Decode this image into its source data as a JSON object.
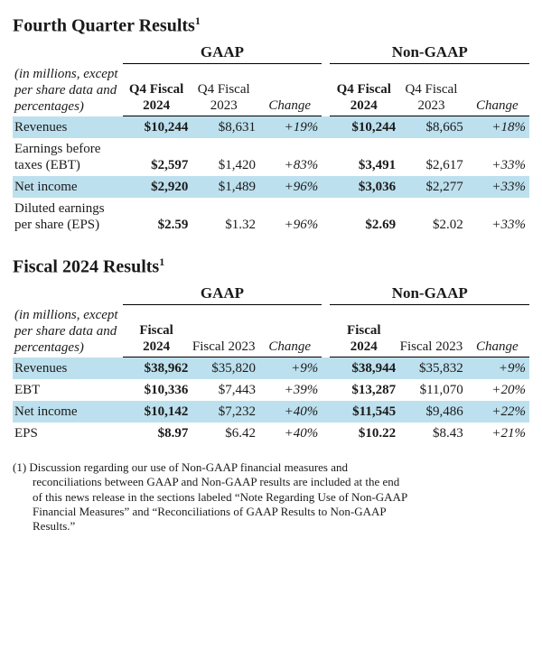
{
  "table1": {
    "title": "Fourth Quarter Results",
    "sup": "1",
    "note": "(in millions, except per share data and percentages)",
    "group_gaap": "GAAP",
    "group_nongaap": "Non-GAAP",
    "h_cur_a": "Q4 Fiscal 2024",
    "h_prev_a": "Q4 Fiscal 2023",
    "h_chg": "Change",
    "h_cur_b": "Q4 Fiscal 2024",
    "h_prev_b": "Q4 Fiscal 2023",
    "rows": [
      {
        "label": "Revenues",
        "hl": true,
        "ga": "$10,244",
        "gb": "$8,631",
        "gc": "+19%",
        "na": "$10,244",
        "nb": "$8,665",
        "nc": "+18%"
      },
      {
        "label": "Earnings before taxes (EBT)",
        "hl": false,
        "ga": "$2,597",
        "gb": "$1,420",
        "gc": "+83%",
        "na": "$3,491",
        "nb": "$2,617",
        "nc": "+33%"
      },
      {
        "label": "Net income",
        "hl": true,
        "ga": "$2,920",
        "gb": "$1,489",
        "gc": "+96%",
        "na": "$3,036",
        "nb": "$2,277",
        "nc": "+33%"
      },
      {
        "label": "Diluted earnings per share (EPS)",
        "hl": false,
        "ga": "$2.59",
        "gb": "$1.32",
        "gc": "+96%",
        "na": "$2.69",
        "nb": "$2.02",
        "nc": "+33%"
      }
    ]
  },
  "table2": {
    "title": "Fiscal 2024 Results",
    "sup": "1",
    "note": "(in millions, except per share data and percentages)",
    "group_gaap": "GAAP",
    "group_nongaap": "Non-GAAP",
    "h_cur_a": "Fiscal 2024",
    "h_prev_a": "Fiscal 2023",
    "h_chg": "Change",
    "h_cur_b": "Fiscal 2024",
    "h_prev_b": "Fiscal 2023",
    "rows": [
      {
        "label": "Revenues",
        "hl": true,
        "ga": "$38,962",
        "gb": "$35,820",
        "gc": "+9%",
        "na": "$38,944",
        "nb": "$35,832",
        "nc": "+9%"
      },
      {
        "label": "EBT",
        "hl": false,
        "ga": "$10,336",
        "gb": "$7,443",
        "gc": "+39%",
        "na": "$13,287",
        "nb": "$11,070",
        "nc": "+20%"
      },
      {
        "label": "Net income",
        "hl": true,
        "ga": "$10,142",
        "gb": "$7,232",
        "gc": "+40%",
        "na": "$11,545",
        "nb": "$9,486",
        "nc": "+22%"
      },
      {
        "label": "EPS",
        "hl": false,
        "ga": "$8.97",
        "gb": "$6.42",
        "gc": "+40%",
        "na": "$10.22",
        "nb": "$8.43",
        "nc": "+21%"
      }
    ]
  },
  "footnote": "(1) Discussion regarding our use of Non-GAAP financial measures and reconciliations between GAAP and Non-GAAP results are included at the end of this news release in the sections labeled “Note Regarding Use of Non-GAAP Financial Measures” and “Reconciliations of GAAP Results to Non-GAAP Results.”",
  "style": {
    "highlight_color": "#bde0ee",
    "border_color": "#000000",
    "background_color": "#ffffff",
    "text_color": "#1a1a1a"
  }
}
